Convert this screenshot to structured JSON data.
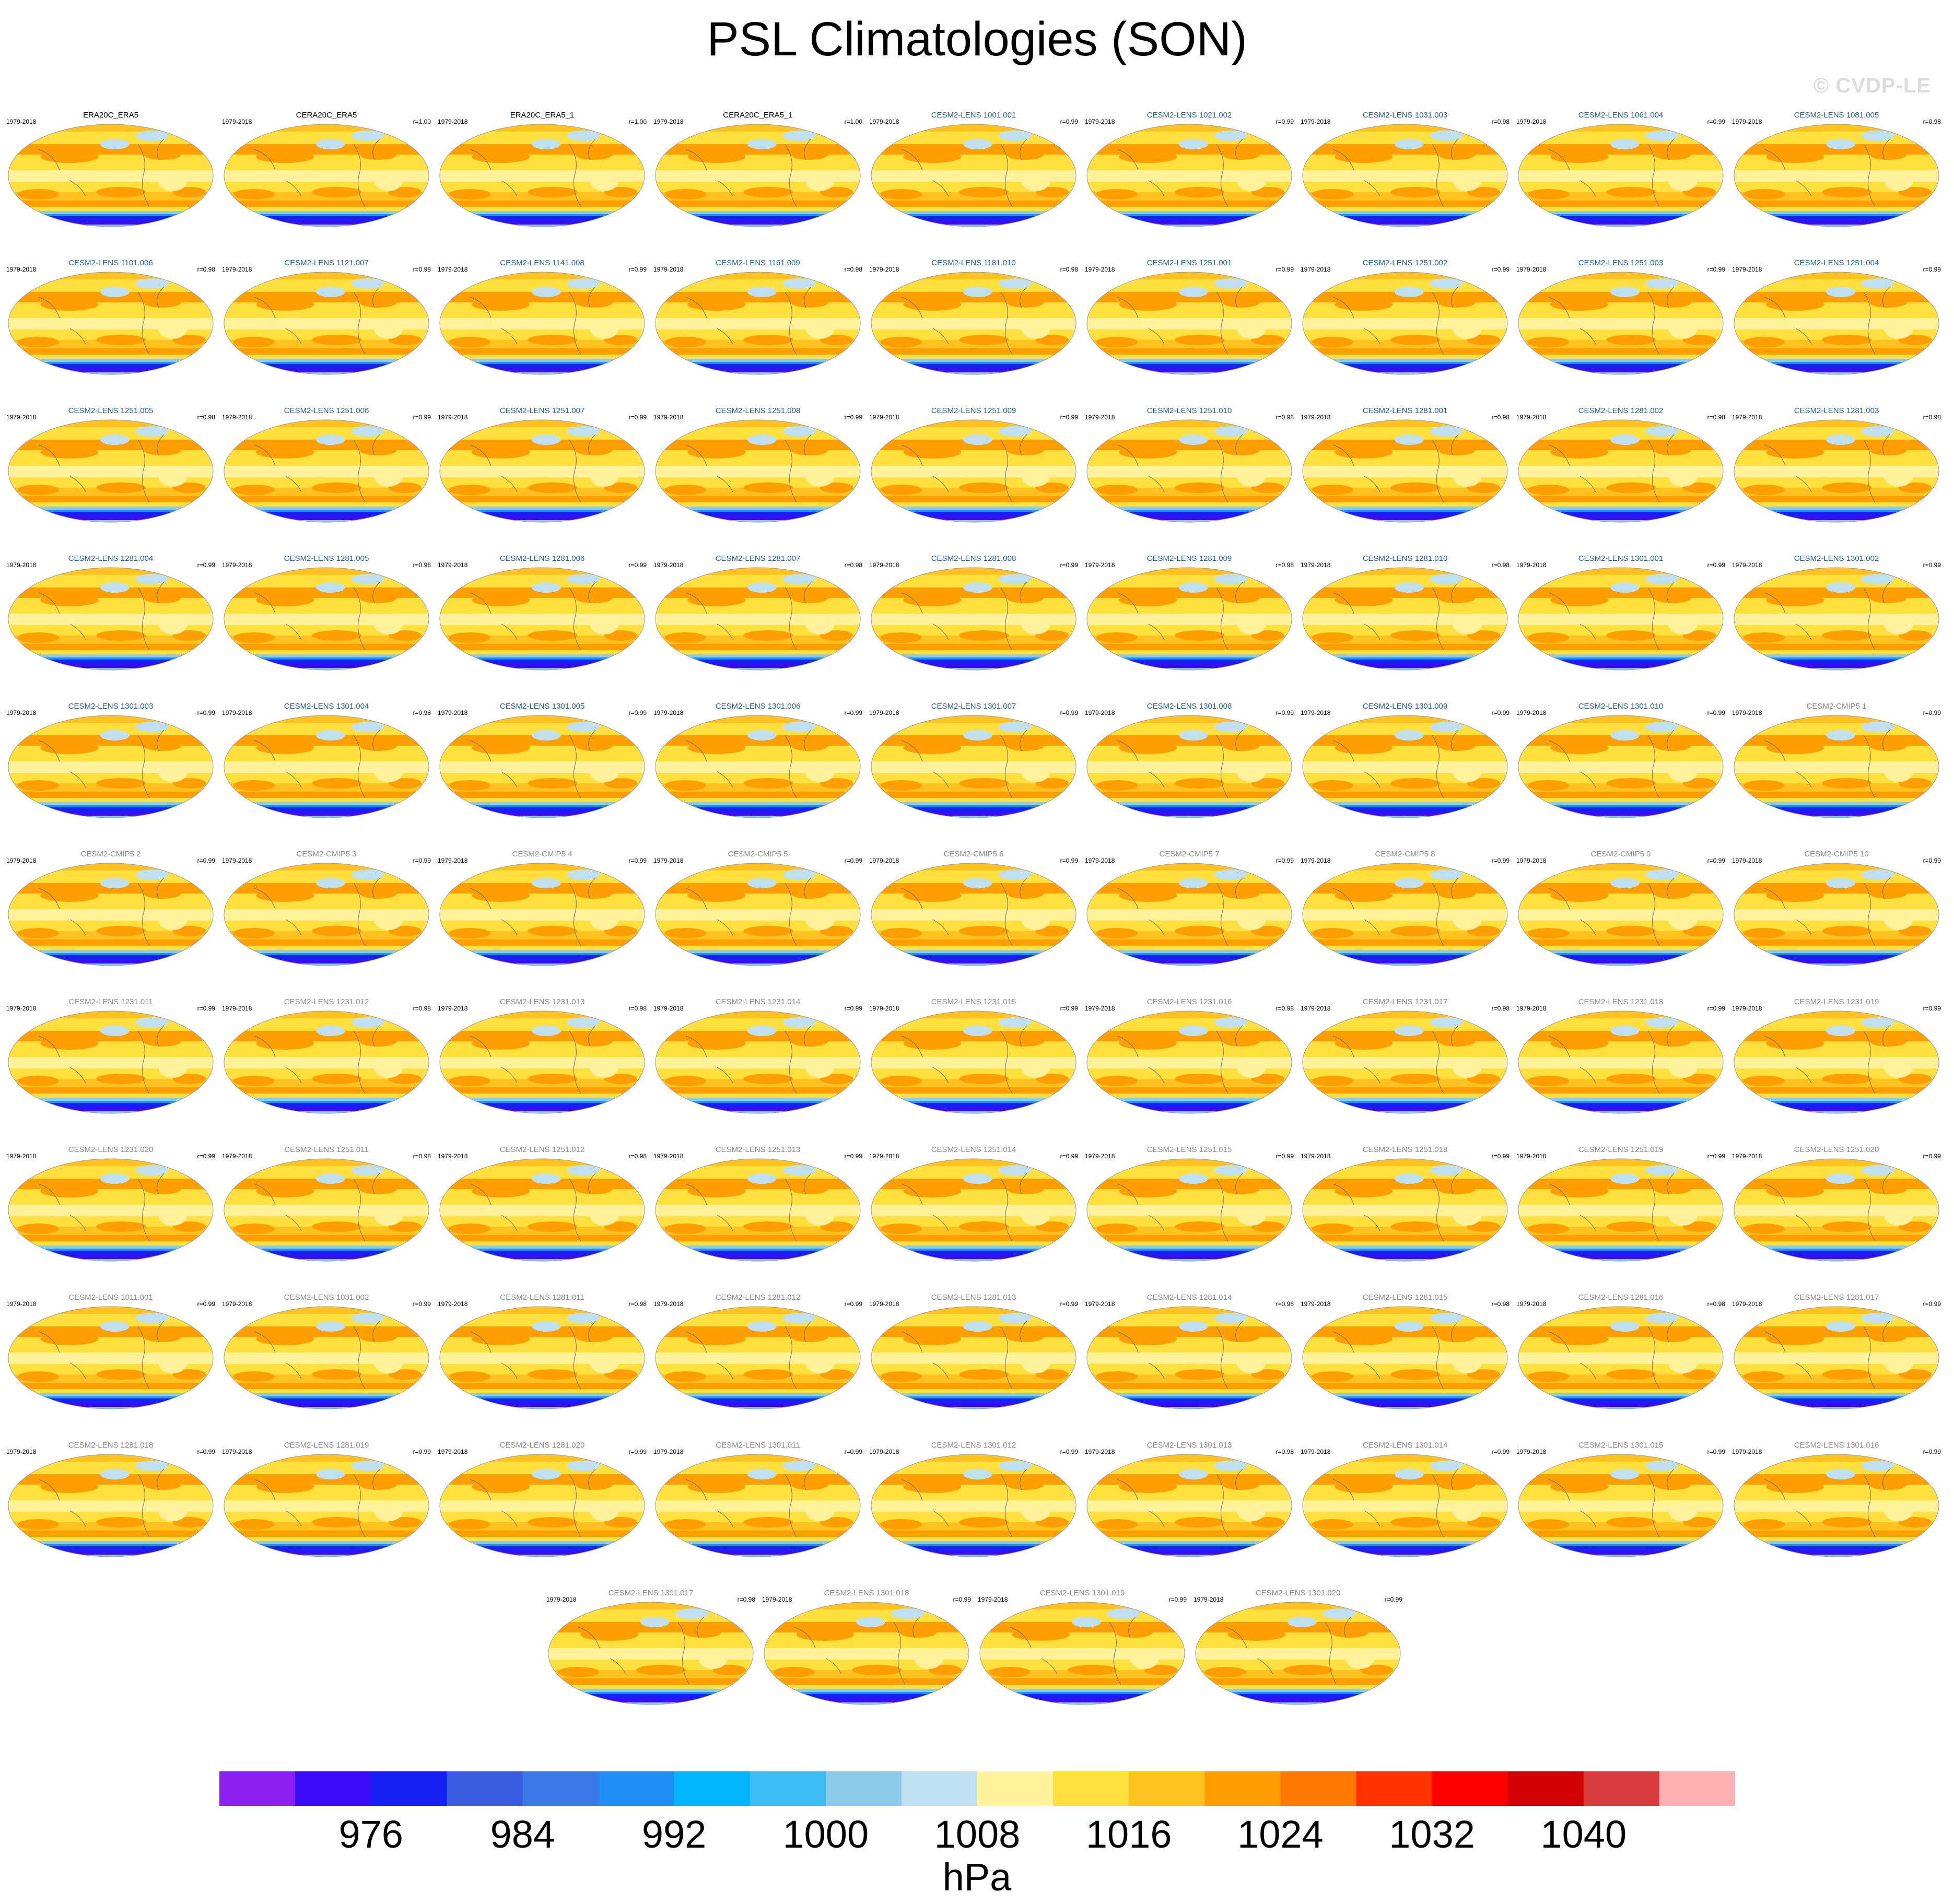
{
  "title": "PSL Climatologies (SON)",
  "watermark": "© CVDP-LE",
  "period": "1979-2018",
  "panels": [
    {
      "name": "ERA20C_ERA5",
      "r": "",
      "style": "obs"
    },
    {
      "name": "CERA20C_ERA5",
      "r": "r=1.00",
      "style": "obs"
    },
    {
      "name": "ERA20C_ERA5_1",
      "r": "r=1.00",
      "style": "obs"
    },
    {
      "name": "CERA20C_ERA5_1",
      "r": "r=1.00",
      "style": "obs"
    },
    {
      "name": "CESM2-LENS 1001.001",
      "r": "r=0.99",
      "style": "lens"
    },
    {
      "name": "CESM2-LENS 1021.002",
      "r": "r=0.99",
      "style": "lens"
    },
    {
      "name": "CESM2-LENS 1031.003",
      "r": "r=0.98",
      "style": "lens"
    },
    {
      "name": "CESM2-LENS 1061.004",
      "r": "r=0.99",
      "style": "lens"
    },
    {
      "name": "CESM2-LENS 1081.005",
      "r": "r=0.98",
      "style": "lens"
    },
    {
      "name": "CESM2-LENS 1101.006",
      "r": "r=0.98",
      "style": "lens"
    },
    {
      "name": "CESM2-LENS 1121.007",
      "r": "r=0.98",
      "style": "lens"
    },
    {
      "name": "CESM2-LENS 1141.008",
      "r": "r=0.99",
      "style": "lens"
    },
    {
      "name": "CESM2-LENS 1161.009",
      "r": "r=0.98",
      "style": "lens"
    },
    {
      "name": "CESM2-LENS 1181.010",
      "r": "r=0.98",
      "style": "lens"
    },
    {
      "name": "CESM2-LENS 1251.001",
      "r": "r=0.99",
      "style": "lens"
    },
    {
      "name": "CESM2-LENS 1251.002",
      "r": "r=0.99",
      "style": "lens"
    },
    {
      "name": "CESM2-LENS 1251.003",
      "r": "r=0.99",
      "style": "lens"
    },
    {
      "name": "CESM2-LENS 1251.004",
      "r": "r=0.99",
      "style": "lens"
    },
    {
      "name": "CESM2-LENS 1251.005",
      "r": "r=0.98",
      "style": "lens"
    },
    {
      "name": "CESM2-LENS 1251.006",
      "r": "r=0.99",
      "style": "lens"
    },
    {
      "name": "CESM2-LENS 1251.007",
      "r": "r=0.99",
      "style": "lens"
    },
    {
      "name": "CESM2-LENS 1251.008",
      "r": "r=0.99",
      "style": "lens"
    },
    {
      "name": "CESM2-LENS 1251.009",
      "r": "r=0.99",
      "style": "lens"
    },
    {
      "name": "CESM2-LENS 1251.010",
      "r": "r=0.98",
      "style": "lens"
    },
    {
      "name": "CESM2-LENS 1281.001",
      "r": "r=0.98",
      "style": "lens"
    },
    {
      "name": "CESM2-LENS 1281.002",
      "r": "r=0.98",
      "style": "lens"
    },
    {
      "name": "CESM2-LENS 1281.003",
      "r": "r=0.98",
      "style": "lens"
    },
    {
      "name": "CESM2-LENS 1281.004",
      "r": "r=0.99",
      "style": "lens"
    },
    {
      "name": "CESM2-LENS 1281.005",
      "r": "r=0.98",
      "style": "lens"
    },
    {
      "name": "CESM2-LENS 1281.006",
      "r": "r=0.99",
      "style": "lens"
    },
    {
      "name": "CESM2-LENS 1281.007",
      "r": "r=0.98",
      "style": "lens"
    },
    {
      "name": "CESM2-LENS 1281.008",
      "r": "r=0.99",
      "style": "lens"
    },
    {
      "name": "CESM2-LENS 1281.009",
      "r": "r=0.98",
      "style": "lens"
    },
    {
      "name": "CESM2-LENS 1281.010",
      "r": "r=0.98",
      "style": "lens"
    },
    {
      "name": "CESM2-LENS 1301.001",
      "r": "r=0.99",
      "style": "lens"
    },
    {
      "name": "CESM2-LENS 1301.002",
      "r": "r=0.99",
      "style": "lens"
    },
    {
      "name": "CESM2-LENS 1301.003",
      "r": "r=0.99",
      "style": "lens"
    },
    {
      "name": "CESM2-LENS 1301.004",
      "r": "r=0.98",
      "style": "lens"
    },
    {
      "name": "CESM2-LENS 1301.005",
      "r": "r=0.99",
      "style": "lens"
    },
    {
      "name": "CESM2-LENS 1301.006",
      "r": "r=0.99",
      "style": "lens"
    },
    {
      "name": "CESM2-LENS 1301.007",
      "r": "r=0.99",
      "style": "lens"
    },
    {
      "name": "CESM2-LENS 1301.008",
      "r": "r=0.99",
      "style": "lens"
    },
    {
      "name": "CESM2-LENS 1301.009",
      "r": "r=0.99",
      "style": "lens"
    },
    {
      "name": "CESM2-LENS 1301.010",
      "r": "r=0.99",
      "style": "lens"
    },
    {
      "name": "CESM2-CMIP5 1",
      "r": "r=0.99",
      "style": "grey"
    },
    {
      "name": "CESM2-CMIP5 2",
      "r": "r=0.99",
      "style": "grey"
    },
    {
      "name": "CESM2-CMIP5 3",
      "r": "r=0.99",
      "style": "grey"
    },
    {
      "name": "CESM2-CMIP5 4",
      "r": "r=0.99",
      "style": "grey"
    },
    {
      "name": "CESM2-CMIP5 5",
      "r": "r=0.99",
      "style": "grey"
    },
    {
      "name": "CESM2-CMIP5 6",
      "r": "r=0.99",
      "style": "grey"
    },
    {
      "name": "CESM2-CMIP5 7",
      "r": "r=0.99",
      "style": "grey"
    },
    {
      "name": "CESM2-CMIP5 8",
      "r": "r=0.99",
      "style": "grey"
    },
    {
      "name": "CESM2-CMIP5 9",
      "r": "r=0.99",
      "style": "grey"
    },
    {
      "name": "CESM2-CMIP5 10",
      "r": "r=0.99",
      "style": "grey"
    },
    {
      "name": "CESM2-LENS 1231.011",
      "r": "r=0.99",
      "style": "grey"
    },
    {
      "name": "CESM2-LENS 1231.012",
      "r": "r=0.98",
      "style": "grey"
    },
    {
      "name": "CESM2-LENS 1231.013",
      "r": "r=0.98",
      "style": "grey"
    },
    {
      "name": "CESM2-LENS 1231.014",
      "r": "r=0.99",
      "style": "grey"
    },
    {
      "name": "CESM2-LENS 1231.015",
      "r": "r=0.99",
      "style": "grey"
    },
    {
      "name": "CESM2-LENS 1231.016",
      "r": "r=0.98",
      "style": "grey"
    },
    {
      "name": "CESM2-LENS 1231.017",
      "r": "r=0.98",
      "style": "grey"
    },
    {
      "name": "CESM2-LENS 1231.018",
      "r": "r=0.99",
      "style": "grey"
    },
    {
      "name": "CESM2-LENS 1231.019",
      "r": "r=0.99",
      "style": "grey"
    },
    {
      "name": "CESM2-LENS 1231.020",
      "r": "r=0.99",
      "style": "grey"
    },
    {
      "name": "CESM2-LENS 1251.011",
      "r": "r=0.98",
      "style": "grey"
    },
    {
      "name": "CESM2-LENS 1251.012",
      "r": "r=0.98",
      "style": "grey"
    },
    {
      "name": "CESM2-LENS 1251.013",
      "r": "r=0.99",
      "style": "grey"
    },
    {
      "name": "CESM2-LENS 1251.014",
      "r": "r=0.99",
      "style": "grey"
    },
    {
      "name": "CESM2-LENS 1251.015",
      "r": "r=0.99",
      "style": "grey"
    },
    {
      "name": "CESM2-LENS 1251.018",
      "r": "r=0.99",
      "style": "grey"
    },
    {
      "name": "CESM2-LENS 1251.019",
      "r": "r=0.99",
      "style": "grey"
    },
    {
      "name": "CESM2-LENS 1251.020",
      "r": "r=0.99",
      "style": "grey"
    },
    {
      "name": "CESM2-LENS 1011.001",
      "r": "r=0.99",
      "style": "grey"
    },
    {
      "name": "CESM2-LENS 1031.002",
      "r": "r=0.99",
      "style": "grey"
    },
    {
      "name": "CESM2-LENS 1281.011",
      "r": "r=0.98",
      "style": "grey"
    },
    {
      "name": "CESM2-LENS 1281.012",
      "r": "r=0.99",
      "style": "grey"
    },
    {
      "name": "CESM2-LENS 1281.013",
      "r": "r=0.99",
      "style": "grey"
    },
    {
      "name": "CESM2-LENS 1281.014",
      "r": "r=0.98",
      "style": "grey"
    },
    {
      "name": "CESM2-LENS 1281.015",
      "r": "r=0.98",
      "style": "grey"
    },
    {
      "name": "CESM2-LENS 1281.016",
      "r": "r=0.98",
      "style": "grey"
    },
    {
      "name": "CESM2-LENS 1281.017",
      "r": "r=0.99",
      "style": "grey"
    },
    {
      "name": "CESM2-LENS 1281.018",
      "r": "r=0.99",
      "style": "grey"
    },
    {
      "name": "CESM2-LENS 1281.019",
      "r": "r=0.99",
      "style": "grey"
    },
    {
      "name": "CESM2-LENS 1281.020",
      "r": "r=0.99",
      "style": "grey"
    },
    {
      "name": "CESM2-LENS 1301.011",
      "r": "r=0.99",
      "style": "grey"
    },
    {
      "name": "CESM2-LENS 1301.012",
      "r": "r=0.99",
      "style": "grey"
    },
    {
      "name": "CESM2-LENS 1301.013",
      "r": "r=0.98",
      "style": "grey"
    },
    {
      "name": "CESM2-LENS 1301.014",
      "r": "r=0.99",
      "style": "grey"
    },
    {
      "name": "CESM2-LENS 1301.015",
      "r": "r=0.99",
      "style": "grey"
    },
    {
      "name": "CESM2-LENS 1301.016",
      "r": "r=0.99",
      "style": "grey"
    },
    {
      "name": "CESM2-LENS 1301.017",
      "r": "r=0.98",
      "style": "grey"
    },
    {
      "name": "CESM2-LENS 1301.018",
      "r": "r=0.99",
      "style": "grey"
    },
    {
      "name": "CESM2-LENS 1301.019",
      "r": "r=0.99",
      "style": "grey"
    },
    {
      "name": "CESM2-LENS 1301.020",
      "r": "r=0.99",
      "style": "grey"
    }
  ],
  "colorbar": {
    "units": "hPa",
    "labels": [
      "976",
      "984",
      "992",
      "1000",
      "1008",
      "1016",
      "1024",
      "1032",
      "1040"
    ],
    "colors": [
      "#8a1ff0",
      "#3a0cf5",
      "#1421f2",
      "#3a5ce0",
      "#3a78e8",
      "#1e8ff5",
      "#00b4ff",
      "#3cbef5",
      "#8ccaea",
      "#bee0f0",
      "#fff29a",
      "#ffe03c",
      "#ffc21e",
      "#ff9e00",
      "#ff7800",
      "#ff3200",
      "#ff0000",
      "#d20000",
      "#d83c3c",
      "#ffb0b0"
    ]
  }
}
